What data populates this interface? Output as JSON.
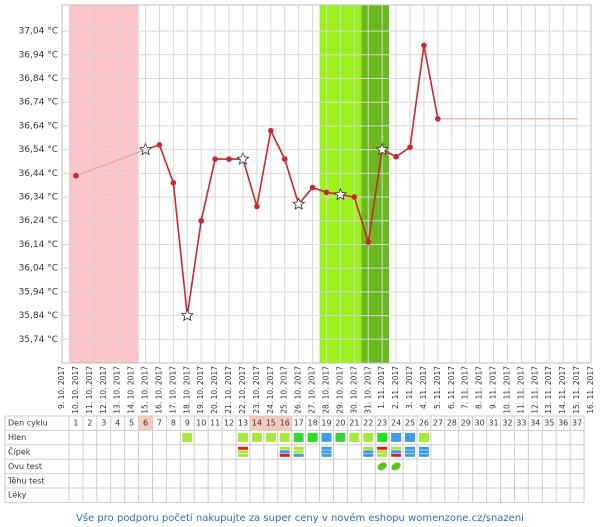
{
  "chart_data": {
    "type": "line",
    "x": [
      "9. 10. 2017",
      "10. 10. 2017",
      "11. 10. 2017",
      "12. 10. 2017",
      "13. 10. 2017",
      "14. 10. 2017",
      "15. 10. 2017",
      "16. 10. 2017",
      "17. 10. 2017",
      "18. 10. 2017",
      "19. 10. 2017",
      "20. 10. 2017",
      "21. 10. 2017",
      "22. 10. 2017",
      "23. 10. 2017",
      "24. 10. 2017",
      "25. 10. 2017",
      "26. 10. 2017",
      "27. 10. 2017",
      "28. 10. 2017",
      "29. 10. 2017",
      "30. 10. 2017",
      "31. 10. 2017",
      "1. 11. 2017",
      "2. 11. 2017",
      "3. 11. 2017",
      "4. 11. 2017",
      "5. 11. 2017",
      "6. 11. 2017",
      "7. 11. 2017",
      "8. 11. 2017",
      "9. 11. 2017",
      "10. 11. 2017",
      "11. 11. 2017",
      "12. 11. 2017",
      "13. 11. 2017",
      "14. 11. 2017",
      "15. 11. 2017",
      "16. 11. 2017"
    ],
    "series": [
      {
        "color": "#c8282d",
        "connect_gaps": false,
        "markers": [
          "circle",
          null,
          null,
          null,
          null,
          null,
          "star",
          "circle",
          "circle",
          "star",
          "circle",
          "circle",
          "circle",
          "star",
          "circle",
          "circle",
          "circle",
          "star",
          "circle",
          "circle",
          "star",
          "circle",
          "circle",
          "star",
          "circle",
          "circle",
          "circle",
          "circle",
          null,
          null,
          null,
          null,
          null,
          null,
          null,
          null,
          null,
          null,
          null
        ],
        "values": [
          null,
          36.43,
          null,
          null,
          null,
          null,
          36.54,
          36.56,
          36.4,
          35.84,
          36.24,
          36.5,
          36.5,
          36.5,
          36.3,
          36.62,
          36.5,
          36.31,
          36.38,
          36.36,
          36.35,
          36.34,
          36.15,
          36.54,
          36.51,
          36.55,
          36.98,
          36.67,
          null,
          null,
          null,
          null,
          null,
          null,
          null,
          null,
          null,
          null,
          null
        ]
      },
      {
        "color": "#e8a0a0",
        "connect_gaps": true,
        "values": [
          null,
          36.43,
          null,
          null,
          null,
          null,
          36.54,
          null,
          null,
          null,
          null,
          null,
          null,
          null,
          null,
          null,
          null,
          null,
          null,
          null,
          null,
          null,
          null,
          null,
          null,
          null,
          null,
          null,
          null,
          null,
          null,
          null,
          null,
          null,
          null,
          null,
          null,
          null,
          null
        ]
      },
      {
        "color": "#e8a0a0",
        "connect_gaps": true,
        "values": [
          null,
          null,
          null,
          null,
          null,
          null,
          null,
          null,
          null,
          null,
          null,
          null,
          null,
          null,
          null,
          null,
          null,
          null,
          null,
          null,
          null,
          null,
          null,
          null,
          null,
          null,
          null,
          36.67,
          null,
          null,
          null,
          null,
          null,
          null,
          null,
          null,
          null,
          36.67,
          null
        ]
      }
    ],
    "bands": [
      {
        "from": 1,
        "to": 5,
        "color": "#fcc4c8"
      },
      {
        "from": 19,
        "to": 21,
        "color": "#9df21e"
      },
      {
        "from": 22,
        "to": 23,
        "color": "#6ab81e"
      }
    ],
    "ylim": [
      35.64,
      37.15
    ],
    "yticks": [
      {
        "value": 35.74,
        "label": "35,74 °C"
      },
      {
        "value": 35.84,
        "label": "35,84 °C"
      },
      {
        "value": 35.94,
        "label": "35,94 °C"
      },
      {
        "value": 36.04,
        "label": "36,04 °C"
      },
      {
        "value": 36.14,
        "label": "36,14 °C"
      },
      {
        "value": 36.24,
        "label": "36,24 °C"
      },
      {
        "value": 36.34,
        "label": "36,34 °C"
      },
      {
        "value": 36.44,
        "label": "36,44 °C"
      },
      {
        "value": 36.54,
        "label": "36,54 °C"
      },
      {
        "value": 36.64,
        "label": "36,64 °C"
      },
      {
        "value": 36.74,
        "label": "36,74 °C"
      },
      {
        "value": 36.84,
        "label": "36,84 °C"
      },
      {
        "value": 36.94,
        "label": "36,94 °C"
      },
      {
        "value": 37.04,
        "label": "37,04 °C"
      }
    ],
    "grid": true
  },
  "cycle_table": {
    "row_labels": [
      "Den cyklu",
      "Hlen",
      "Čípek",
      "Ovu test",
      "Těhu test",
      "Léky"
    ],
    "days": [
      1,
      2,
      3,
      4,
      5,
      6,
      7,
      8,
      9,
      10,
      11,
      12,
      13,
      14,
      15,
      16,
      17,
      18,
      19,
      20,
      21,
      22,
      23,
      24,
      25,
      26,
      27,
      28,
      29,
      30,
      31,
      32,
      33,
      34,
      35,
      36,
      37
    ],
    "highlight_days": [
      6,
      14,
      15,
      16
    ],
    "highlight_color": "#f9cbbd",
    "hlen": [
      {
        "day": 9,
        "color": "#a8e83c"
      },
      {
        "day": 13,
        "color": "#a8e83c"
      },
      {
        "day": 14,
        "color": "#a8e83c"
      },
      {
        "day": 15,
        "color": "#a8e83c"
      },
      {
        "day": 16,
        "color": "#a8e83c"
      },
      {
        "day": 17,
        "color": "#3cd23c"
      },
      {
        "day": 18,
        "color": "#22e022"
      },
      {
        "day": 19,
        "color": "#3c9ee0"
      },
      {
        "day": 20,
        "color": "#3cd23c"
      },
      {
        "day": 21,
        "color": "#a8e83c"
      },
      {
        "day": 22,
        "color": "#a8e83c"
      },
      {
        "day": 23,
        "color": "#22e022"
      },
      {
        "day": 24,
        "color": "#3c9ee0"
      },
      {
        "day": 25,
        "color": "#3c9ee0"
      },
      {
        "day": 26,
        "color": "#a8e83c"
      }
    ],
    "cipek": [
      {
        "day": 13,
        "colors": [
          "#e02020",
          "#a8e83c",
          "#a8e83c"
        ]
      },
      {
        "day": 16,
        "colors": [
          "#a8e83c",
          "#3c9ee0",
          "#e02020"
        ]
      },
      {
        "day": 17,
        "colors": [
          "#a8e83c",
          "#a8e83c",
          "#3c9ee0"
        ]
      },
      {
        "day": 19,
        "colors": [
          "#3c9ee0",
          "#3c9ee0",
          "#3c9ee0"
        ]
      },
      {
        "day": 22,
        "colors": [
          "#a8e83c",
          "#3c9ee0",
          "#3c9ee0"
        ]
      },
      {
        "day": 23,
        "colors": [
          "#e02020",
          "#a8e83c",
          "#a8e83c"
        ]
      },
      {
        "day": 24,
        "colors": [
          "#a8e83c",
          "#3c9ee0",
          "#e02020"
        ]
      },
      {
        "day": 25,
        "colors": [
          "#3c9ee0",
          "#3c9ee0",
          "#3c9ee0"
        ]
      },
      {
        "day": 26,
        "colors": [
          "#3c9ee0",
          "#3c9ee0",
          "#3c9ee0"
        ]
      }
    ],
    "ovu_test": [
      {
        "day": 23,
        "color": "#5cc21e"
      },
      {
        "day": 24,
        "color": "#5cc21e"
      }
    ]
  },
  "footer": "Vše pro podporu početí nakupujte za super ceny v novém eshopu womenzone.cz/snazeni"
}
